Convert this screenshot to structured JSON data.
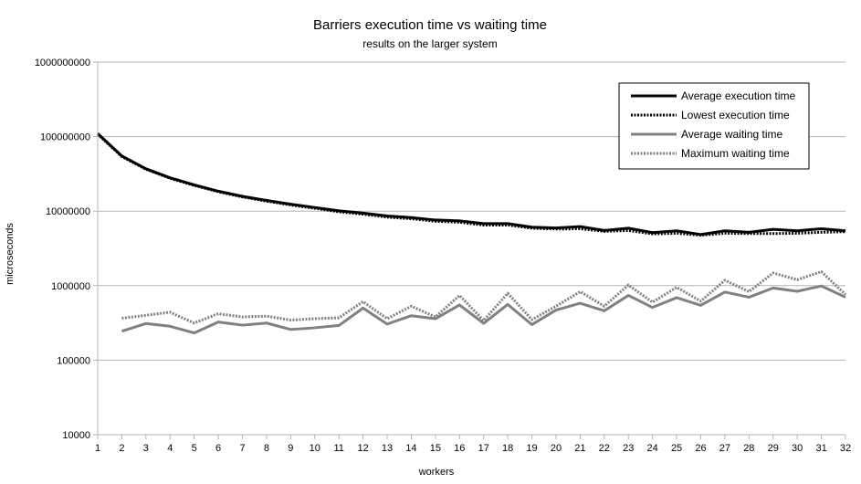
{
  "chart_data": {
    "type": "line",
    "title": "Barriers execution time vs waiting time",
    "subtitle": "results on the larger system",
    "xlabel": "workers",
    "ylabel": "microseconds",
    "y_scale": "log",
    "ylim": [
      10000,
      1000000000
    ],
    "y_ticks": [
      "10000",
      "100000",
      "1000000",
      "10000000",
      "100000000",
      "1000000000"
    ],
    "x": [
      1,
      2,
      3,
      4,
      5,
      6,
      7,
      8,
      9,
      10,
      11,
      12,
      13,
      14,
      15,
      16,
      17,
      18,
      19,
      20,
      21,
      22,
      23,
      24,
      25,
      26,
      27,
      28,
      29,
      30,
      31,
      32
    ],
    "grid": "horizontal",
    "legend_position": "top-right",
    "series": [
      {
        "name": "Average execution time",
        "color": "#000000",
        "style": "solid",
        "values": [
          110000000,
          55000000,
          37000000,
          28000000,
          22500000,
          18500000,
          15800000,
          13900000,
          12400000,
          11200000,
          10100000,
          9400000,
          8600000,
          8200000,
          7600000,
          7400000,
          6800000,
          6800000,
          6100000,
          5950000,
          6200000,
          5500000,
          5900000,
          5150000,
          5450000,
          4850000,
          5450000,
          5200000,
          5700000,
          5450000,
          5800000,
          5450000
        ]
      },
      {
        "name": "Lowest execution time",
        "color": "#000000",
        "style": "dotted",
        "values": [
          108000000,
          54000000,
          36500000,
          27600000,
          22100000,
          18200000,
          15500000,
          13600000,
          12100000,
          10900000,
          9800000,
          9100000,
          8300000,
          7900000,
          7300000,
          7100000,
          6500000,
          6500000,
          5900000,
          5750000,
          5800000,
          5350000,
          5500000,
          4950000,
          5050000,
          4750000,
          5050000,
          5000000,
          5000000,
          5050000,
          5200000,
          5300000
        ]
      },
      {
        "name": "Average waiting time",
        "color": "#808080",
        "style": "solid",
        "values": [
          null,
          245000,
          310000,
          285000,
          232000,
          325000,
          295000,
          315000,
          258000,
          272000,
          292000,
          500000,
          305000,
          395000,
          360000,
          550000,
          312000,
          560000,
          300000,
          470000,
          580000,
          460000,
          740000,
          510000,
          690000,
          545000,
          820000,
          700000,
          930000,
          840000,
          990000,
          700000
        ]
      },
      {
        "name": "Maximum waiting time",
        "color": "#808080",
        "style": "dotted",
        "values": [
          null,
          365000,
          400000,
          440000,
          315000,
          420000,
          380000,
          390000,
          345000,
          360000,
          370000,
          610000,
          360000,
          530000,
          380000,
          740000,
          340000,
          790000,
          350000,
          530000,
          830000,
          530000,
          1020000,
          600000,
          950000,
          620000,
          1180000,
          830000,
          1480000,
          1200000,
          1540000,
          760000
        ]
      }
    ]
  }
}
